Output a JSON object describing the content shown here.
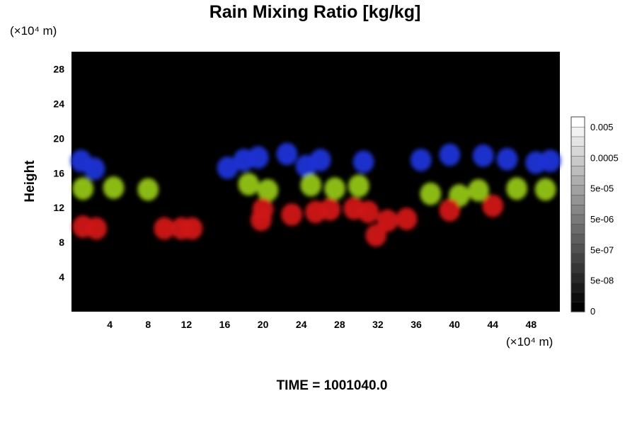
{
  "chart_data": {
    "type": "heatmap",
    "title": "Rain Mixing Ratio [kg/kg]",
    "xlabel": "",
    "ylabel": "Height",
    "x_unit": "(×10⁴ m)",
    "y_unit": "(×10⁴ m)",
    "xlim": [
      0,
      51
    ],
    "ylim": [
      0,
      30
    ],
    "x_ticks": [
      "4",
      "8",
      "12",
      "16",
      "20",
      "24",
      "28",
      "32",
      "36",
      "40",
      "44",
      "48"
    ],
    "y_ticks": [
      "4",
      "8",
      "12",
      "16",
      "20",
      "24",
      "28"
    ],
    "colorbar": {
      "labels": [
        "0.005",
        "0.0005",
        "5e-05",
        "5e-06",
        "5e-07",
        "5e-08",
        "0"
      ],
      "levels": 20,
      "gradient": [
        "#000000",
        "#ffffff"
      ]
    },
    "layers": [
      {
        "color": "#1f33d6",
        "blobs": [
          {
            "x": 1,
            "y": 17.4
          },
          {
            "x": 2.4,
            "y": 16.5
          },
          {
            "x": 16.3,
            "y": 16.6
          },
          {
            "x": 18,
            "y": 17.5
          },
          {
            "x": 19.5,
            "y": 17.8
          },
          {
            "x": 22.5,
            "y": 18.2
          },
          {
            "x": 26,
            "y": 17.5
          },
          {
            "x": 24.5,
            "y": 16.8
          },
          {
            "x": 30.5,
            "y": 17.3
          },
          {
            "x": 36.5,
            "y": 17.5
          },
          {
            "x": 39.5,
            "y": 18.1
          },
          {
            "x": 43,
            "y": 18
          },
          {
            "x": 45.5,
            "y": 17.6
          },
          {
            "x": 48.5,
            "y": 17.2
          },
          {
            "x": 50,
            "y": 17.4
          }
        ]
      },
      {
        "color": "#94c414",
        "blobs": [
          {
            "x": 1.2,
            "y": 14.2
          },
          {
            "x": 4.4,
            "y": 14.3
          },
          {
            "x": 8,
            "y": 14.1
          },
          {
            "x": 18.5,
            "y": 14.7
          },
          {
            "x": 20.5,
            "y": 14
          },
          {
            "x": 25,
            "y": 14.6
          },
          {
            "x": 27.5,
            "y": 14.2
          },
          {
            "x": 30,
            "y": 14.5
          },
          {
            "x": 37.5,
            "y": 13.6
          },
          {
            "x": 40.5,
            "y": 13.4
          },
          {
            "x": 42.5,
            "y": 14
          },
          {
            "x": 46.5,
            "y": 14.2
          },
          {
            "x": 49.5,
            "y": 14.1
          }
        ]
      },
      {
        "color": "#d01414",
        "blobs": [
          {
            "x": 25.5,
            "y": 11.5
          },
          {
            "x": 27,
            "y": 11.8
          },
          {
            "x": 29.5,
            "y": 11.9
          },
          {
            "x": 31,
            "y": 11.5
          },
          {
            "x": 33,
            "y": 10.5
          },
          {
            "x": 35,
            "y": 10.7
          },
          {
            "x": 39.5,
            "y": 11.7
          },
          {
            "x": 44,
            "y": 12.2
          },
          {
            "x": 20,
            "y": 11.8
          },
          {
            "x": 23,
            "y": 11.2
          },
          {
            "x": 1.2,
            "y": 9.8
          },
          {
            "x": 2.6,
            "y": 9.6
          },
          {
            "x": 9.7,
            "y": 9.6
          },
          {
            "x": 11.5,
            "y": 9.6
          },
          {
            "x": 12.6,
            "y": 9.6
          },
          {
            "x": 19.8,
            "y": 10.6
          },
          {
            "x": 31.8,
            "y": 8.8
          }
        ]
      }
    ]
  },
  "footer": "TIME = 1001040.0"
}
